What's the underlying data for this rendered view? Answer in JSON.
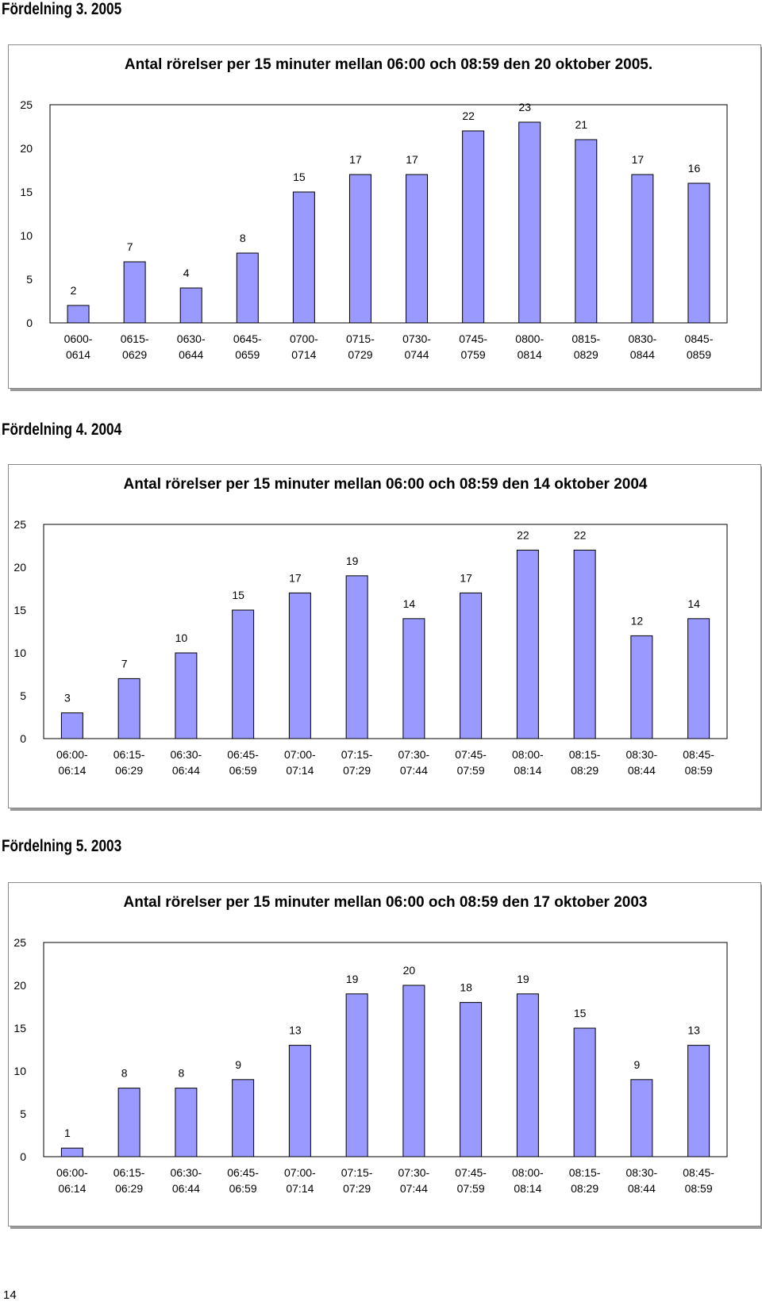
{
  "sections": [
    {
      "heading": "Fördelning 3. 2005"
    },
    {
      "heading": "Fördelning 4. 2004"
    },
    {
      "heading": "Fördelning 5. 2003"
    }
  ],
  "page_number": "14",
  "style": {
    "bar_fill": "#9999ff",
    "bar_stroke": "#000000",
    "background": "#ffffff"
  },
  "chart_data": [
    {
      "type": "bar",
      "title": "Antal rörelser per 15 minuter mellan 06:00 och 08:59 den 20 oktober 2005.",
      "categories": [
        [
          "0600-",
          "0614"
        ],
        [
          "0615-",
          "0629"
        ],
        [
          "0630-",
          "0644"
        ],
        [
          "0645-",
          "0659"
        ],
        [
          "0700-",
          "0714"
        ],
        [
          "0715-",
          "0729"
        ],
        [
          "0730-",
          "0744"
        ],
        [
          "0745-",
          "0759"
        ],
        [
          "0800-",
          "0814"
        ],
        [
          "0815-",
          "0829"
        ],
        [
          "0830-",
          "0844"
        ],
        [
          "0845-",
          "0859"
        ]
      ],
      "values": [
        2,
        7,
        4,
        8,
        15,
        17,
        17,
        22,
        23,
        21,
        17,
        16
      ],
      "ylim": [
        0,
        25
      ],
      "yticks": [
        0,
        5,
        10,
        15,
        20,
        25
      ],
      "grid": false,
      "data_labels": true
    },
    {
      "type": "bar",
      "title": "Antal rörelser per 15 minuter mellan 06:00 och 08:59 den 14 oktober 2004",
      "categories": [
        [
          "06:00-",
          "06:14"
        ],
        [
          "06:15-",
          "06:29"
        ],
        [
          "06:30-",
          "06:44"
        ],
        [
          "06:45-",
          "06:59"
        ],
        [
          "07:00-",
          "07:14"
        ],
        [
          "07:15-",
          "07:29"
        ],
        [
          "07:30-",
          "07:44"
        ],
        [
          "07:45-",
          "07:59"
        ],
        [
          "08:00-",
          "08:14"
        ],
        [
          "08:15-",
          "08:29"
        ],
        [
          "08:30-",
          "08:44"
        ],
        [
          "08:45-",
          "08:59"
        ]
      ],
      "values": [
        3,
        7,
        10,
        15,
        17,
        19,
        14,
        17,
        22,
        22,
        12,
        14
      ],
      "ylim": [
        0,
        25
      ],
      "yticks": [
        0,
        5,
        10,
        15,
        20,
        25
      ],
      "grid": false,
      "data_labels": true
    },
    {
      "type": "bar",
      "title": "Antal rörelser per 15 minuter mellan 06:00 och 08:59 den 17 oktober 2003",
      "categories": [
        [
          "06:00-",
          "06:14"
        ],
        [
          "06:15-",
          "06:29"
        ],
        [
          "06:30-",
          "06:44"
        ],
        [
          "06:45-",
          "06:59"
        ],
        [
          "07:00-",
          "07:14"
        ],
        [
          "07:15-",
          "07:29"
        ],
        [
          "07:30-",
          "07:44"
        ],
        [
          "07:45-",
          "07:59"
        ],
        [
          "08:00-",
          "08:14"
        ],
        [
          "08:15-",
          "08:29"
        ],
        [
          "08:30-",
          "08:44"
        ],
        [
          "08:45-",
          "08:59"
        ]
      ],
      "values": [
        1,
        8,
        8,
        9,
        13,
        19,
        20,
        18,
        19,
        15,
        9,
        13
      ],
      "ylim": [
        0,
        25
      ],
      "yticks": [
        0,
        5,
        10,
        15,
        20,
        25
      ],
      "grid": false,
      "data_labels": true
    }
  ]
}
